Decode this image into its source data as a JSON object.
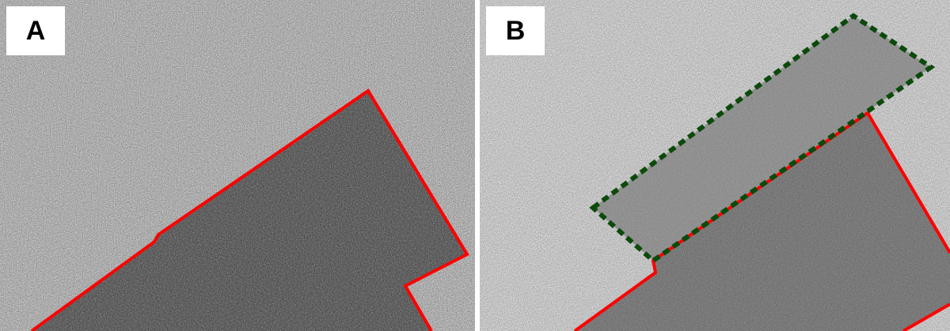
{
  "panels": [
    {
      "label": "A",
      "outline": {
        "color": "#ff0000",
        "style": "solid"
      }
    },
    {
      "label": "B",
      "outline": {
        "color": "#ff0000",
        "style": "solid"
      },
      "secondary_outline": {
        "color": "#0b4a0b",
        "style": "dashed"
      }
    }
  ]
}
